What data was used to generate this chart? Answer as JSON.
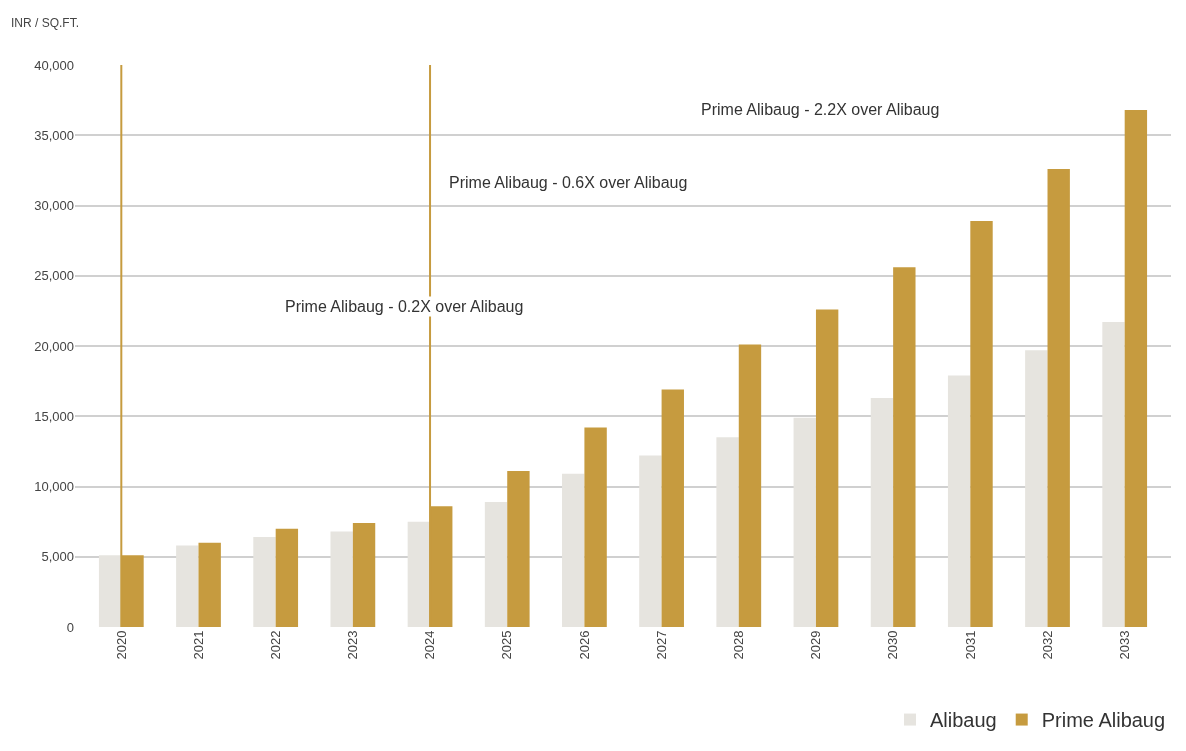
{
  "chart_data": {
    "type": "bar",
    "ylabel": "INR / SQ.FT.",
    "categories": [
      "2020",
      "2021",
      "2022",
      "2023",
      "2024",
      "2025",
      "2026",
      "2027",
      "2028",
      "2029",
      "2030",
      "2031",
      "2032",
      "2033"
    ],
    "series": [
      {
        "name": "Alibaug",
        "color": "#e6e4df",
        "values": [
          5100,
          5800,
          6400,
          6800,
          7500,
          8900,
          10900,
          12200,
          13500,
          14900,
          16300,
          17900,
          19700,
          21700
        ]
      },
      {
        "name": "Prime Alibaug",
        "color": "#c69b3f",
        "values": [
          5100,
          6000,
          7000,
          7400,
          8600,
          11100,
          14200,
          16900,
          20100,
          22600,
          25600,
          28900,
          32600,
          36800
        ]
      }
    ],
    "ylim": [
      0,
      40000
    ],
    "yticks": [
      {
        "value": 0,
        "label": "0"
      },
      {
        "value": 5000,
        "label": "5,000"
      },
      {
        "value": 10000,
        "label": "10,000"
      },
      {
        "value": 15000,
        "label": "15,000"
      },
      {
        "value": 20000,
        "label": "20,000"
      },
      {
        "value": 25000,
        "label": "25,000"
      },
      {
        "value": 30000,
        "label": "30,000"
      },
      {
        "value": 35000,
        "label": "35,000"
      },
      {
        "value": 40000,
        "label": "40,000"
      }
    ],
    "grid": "y",
    "legend": "bottom right",
    "ref_lines": [
      {
        "axis": "x",
        "value": "2020",
        "color": "#c69b3f"
      },
      {
        "axis": "x",
        "value": "2024",
        "color": "#c69b3f"
      }
    ],
    "annotations": [
      "Prime Alibaug - 0.2X over Alibaug",
      "Prime Alibaug - 0.6X over Alibaug",
      "Prime Alibaug - 2.2X over Alibaug"
    ]
  }
}
